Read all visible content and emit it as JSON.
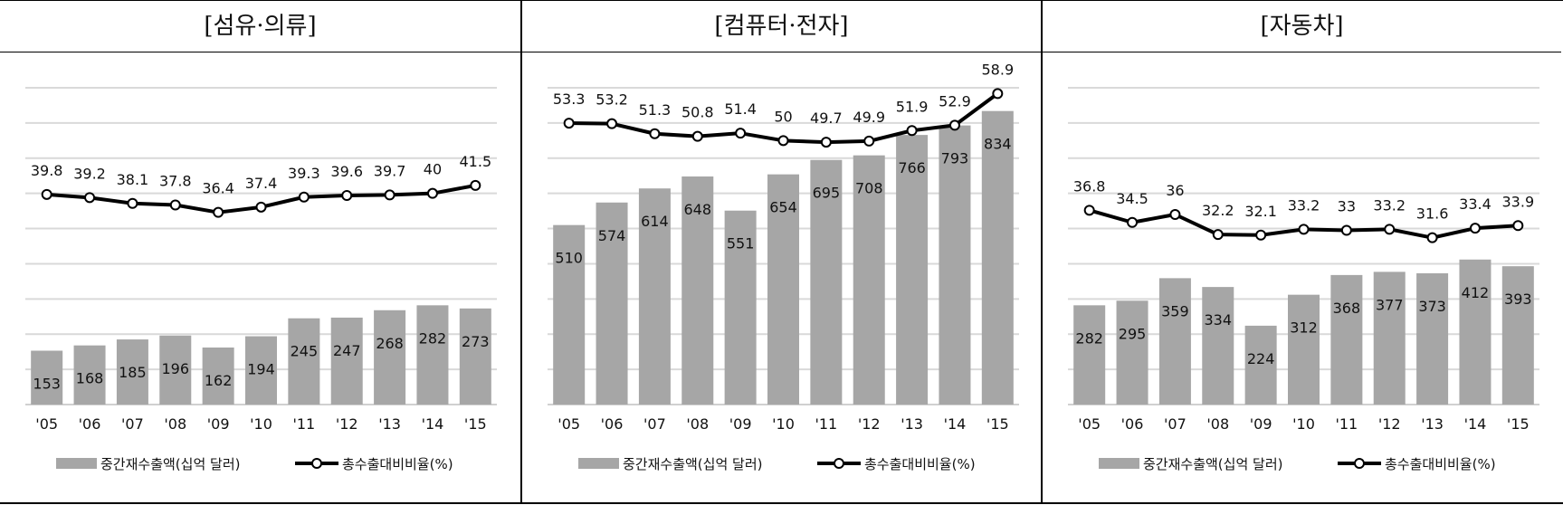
{
  "categories": [
    "'05",
    "'06",
    "'07",
    "'08",
    "'09",
    "'10",
    "'11",
    "'12",
    "'13",
    "'14",
    "'15"
  ],
  "legend": {
    "bar": "중간재수출액(십억 달러)",
    "line": "총수출대비비율(%)"
  },
  "colors": {
    "bar": "#a6a6a6",
    "line": "#000000",
    "marker_fill": "#ffffff",
    "grid": "#d9d9d9"
  },
  "chart_data": [
    {
      "type": "bar+line",
      "title": "[섬유·의류]",
      "categories": [
        "'05",
        "'06",
        "'07",
        "'08",
        "'09",
        "'10",
        "'11",
        "'12",
        "'13",
        "'14",
        "'15"
      ],
      "series": [
        {
          "name": "중간재수출액(십억 달러)",
          "type": "bar",
          "values": [
            153,
            168,
            185,
            196,
            162,
            194,
            245,
            247,
            268,
            282,
            273
          ]
        },
        {
          "name": "총수출대비비율(%)",
          "type": "line",
          "values": [
            39.8,
            39.2,
            38.1,
            37.8,
            36.4,
            37.4,
            39.3,
            39.6,
            39.7,
            40,
            41.5
          ]
        }
      ],
      "ylim_bar": [
        0,
        900
      ],
      "ylim_line": [
        0,
        60
      ],
      "grid": true,
      "legend": "bottom"
    },
    {
      "type": "bar+line",
      "title": "[컴퓨터·전자]",
      "categories": [
        "'05",
        "'06",
        "'07",
        "'08",
        "'09",
        "'10",
        "'11",
        "'12",
        "'13",
        "'14",
        "'15"
      ],
      "series": [
        {
          "name": "중간재수출액(십억 달러)",
          "type": "bar",
          "values": [
            510,
            574,
            614,
            648,
            551,
            654,
            695,
            708,
            766,
            793,
            834
          ]
        },
        {
          "name": "총수출대비비율(%)",
          "type": "line",
          "values": [
            53.3,
            53.2,
            51.3,
            50.8,
            51.4,
            50,
            49.7,
            49.9,
            51.9,
            52.9,
            58.9
          ]
        }
      ],
      "ylim_bar": [
        0,
        900
      ],
      "ylim_line": [
        0,
        60
      ],
      "grid": true,
      "legend": "bottom"
    },
    {
      "type": "bar+line",
      "title": "[자동차]",
      "categories": [
        "'05",
        "'06",
        "'07",
        "'08",
        "'09",
        "'10",
        "'11",
        "'12",
        "'13",
        "'14",
        "'15"
      ],
      "series": [
        {
          "name": "중간재수출액(십억 달러)",
          "type": "bar",
          "values": [
            282,
            295,
            359,
            334,
            224,
            312,
            368,
            377,
            373,
            412,
            393
          ]
        },
        {
          "name": "총수출대비비율(%)",
          "type": "line",
          "values": [
            36.8,
            34.5,
            36,
            32.2,
            32.1,
            33.2,
            33,
            33.2,
            31.6,
            33.4,
            33.9
          ]
        }
      ],
      "ylim_bar": [
        0,
        900
      ],
      "ylim_line": [
        0,
        60
      ],
      "grid": true,
      "legend": "bottom"
    }
  ]
}
